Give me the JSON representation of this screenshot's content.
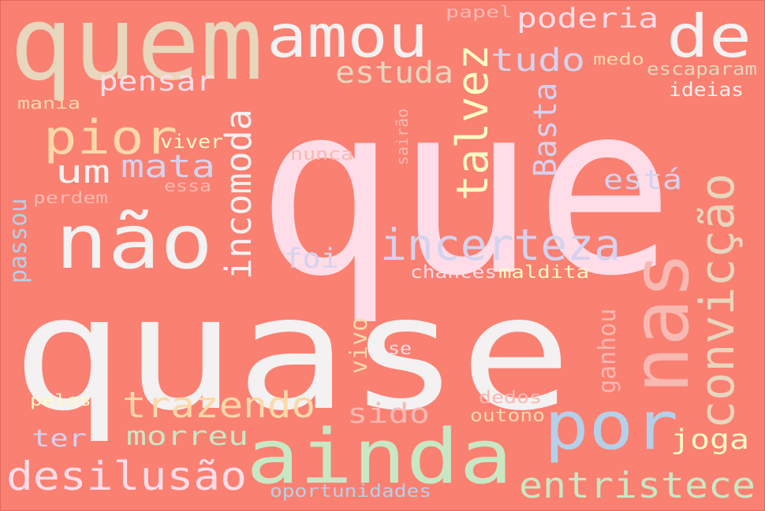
{
  "background": "#fa8072",
  "words": [
    {
      "text": "que",
      "color": "#ffdde8"
    },
    {
      "text": "quase",
      "color": "#f3f1f1"
    },
    {
      "text": "quem",
      "color": "#e8d6bd"
    },
    {
      "text": "amou",
      "color": "#f3f1f1"
    },
    {
      "text": "de",
      "color": "#f3f1f1"
    },
    {
      "text": "ainda",
      "color": "#c8e8c4"
    },
    {
      "text": "não",
      "color": "#f3f1f1"
    },
    {
      "text": "por",
      "color": "#b5d0e8"
    },
    {
      "text": "nas",
      "color": "#f8b9b2"
    },
    {
      "text": "convicção",
      "color": "#e8d6bd"
    },
    {
      "text": "incerteza",
      "color": "#d5d2ee"
    },
    {
      "text": "pior",
      "color": "#fdd9a8"
    },
    {
      "text": "talvez",
      "color": "#fefac4"
    },
    {
      "text": "incomoda",
      "color": "#f3f1f1"
    },
    {
      "text": "desilusão",
      "color": "#ffdde8"
    },
    {
      "text": "entristece",
      "color": "#c8e8c4"
    },
    {
      "text": "trazendo",
      "color": "#fdd9a8"
    },
    {
      "text": "tudo",
      "color": "#d5d2ee"
    },
    {
      "text": "poderia",
      "color": "#ffdde8"
    },
    {
      "text": "estuda",
      "color": "#e8d6bd"
    },
    {
      "text": "pensar",
      "color": "#ffdde8"
    },
    {
      "text": "mata",
      "color": "#d5d2ee"
    },
    {
      "text": "um",
      "color": "#f3f1f1"
    },
    {
      "text": "Basta",
      "color": "#d5d2ee"
    },
    {
      "text": "está",
      "color": "#d5d2ee"
    },
    {
      "text": "passou",
      "color": "#b5d0e8"
    },
    {
      "text": "foi",
      "color": "#d5d2ee"
    },
    {
      "text": "vivo",
      "color": "#fdd9a8"
    },
    {
      "text": "ganhou",
      "color": "#f8b9b2"
    },
    {
      "text": "sido",
      "color": "#f8b9b2"
    },
    {
      "text": "morreu",
      "color": "#c8e8c4"
    },
    {
      "text": "joga",
      "color": "#fefac4"
    },
    {
      "text": "ter",
      "color": "#d5d2ee"
    },
    {
      "text": "viver",
      "color": "#fefac4"
    },
    {
      "text": "nunca",
      "color": "#f8b9b2"
    },
    {
      "text": "sairão",
      "color": "#f8b9b2"
    },
    {
      "text": "papel",
      "color": "#f8b9b2"
    },
    {
      "text": "medo",
      "color": "#fdd9a8"
    },
    {
      "text": "escaparam",
      "color": "#e8d6bd"
    },
    {
      "text": "ideias",
      "color": "#f3f1f1"
    },
    {
      "text": "mania",
      "color": "#fdd9a8"
    },
    {
      "text": "perdem",
      "color": "#f8b9b2"
    },
    {
      "text": "essa",
      "color": "#f8b9b2"
    },
    {
      "text": "chances",
      "color": "#ffdde8"
    },
    {
      "text": "maldita",
      "color": "#fefac4"
    },
    {
      "text": "se",
      "color": "#ffdde8"
    },
    {
      "text": "pelos",
      "color": "#fefac4"
    },
    {
      "text": "dedos",
      "color": "#f8b9b2"
    },
    {
      "text": "outono",
      "color": "#fdd9a8"
    },
    {
      "text": "oportunidades",
      "color": "#b5d0e8"
    }
  ]
}
